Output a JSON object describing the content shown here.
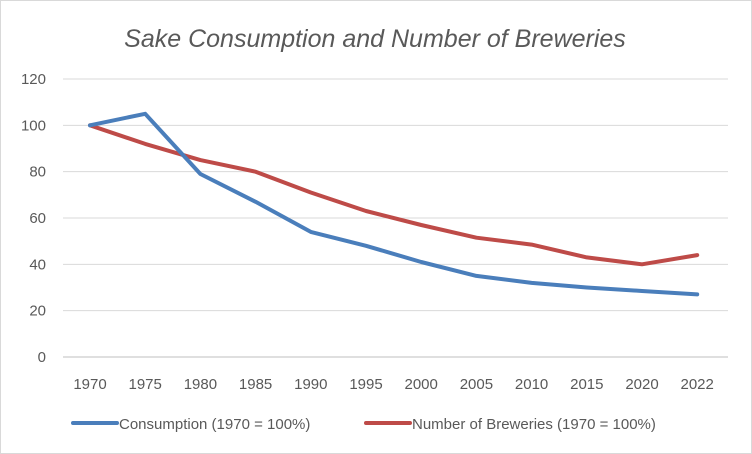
{
  "chart_data": {
    "type": "line",
    "title": "Sake Consumption and Number of Breweries",
    "xlabel": "",
    "ylabel": "",
    "categories": [
      "1970",
      "1975",
      "1980",
      "1985",
      "1990",
      "1995",
      "2000",
      "2005",
      "2010",
      "2015",
      "2020",
      "2022"
    ],
    "ylim": [
      0,
      120
    ],
    "yticks": [
      0,
      20,
      40,
      60,
      80,
      100,
      120
    ],
    "grid": true,
    "legend_position": "bottom",
    "series": [
      {
        "name": "Consumption (1970 = 100%)",
        "color": "#4a7ebb",
        "values": [
          100,
          105,
          79,
          67,
          54,
          48,
          41,
          35,
          32,
          30,
          28.5,
          27
        ]
      },
      {
        "name": "Number of Breweries (1970 = 100%)",
        "color": "#be4b48",
        "values": [
          100,
          92,
          85,
          80,
          71,
          63,
          57,
          51.5,
          48.5,
          43,
          40,
          44
        ]
      }
    ]
  }
}
